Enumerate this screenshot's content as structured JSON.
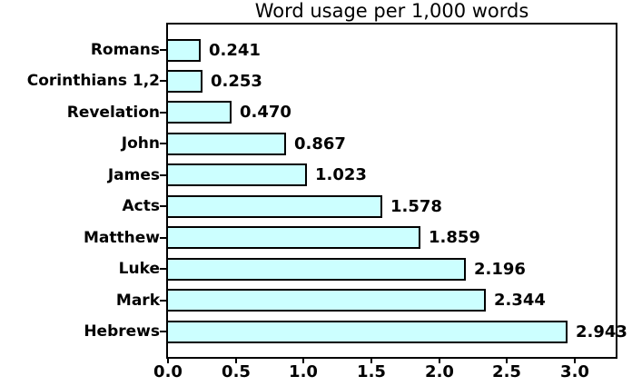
{
  "title": "Word usage per 1,000 words",
  "chart_data": {
    "type": "bar",
    "orientation": "horizontal",
    "title": "Word usage per 1,000 words",
    "xlabel": "",
    "ylabel": "",
    "categories": [
      "Romans",
      "Corinthians 1,2",
      "Revelation",
      "John",
      "James",
      "Acts",
      "Matthew",
      "Luke",
      "Mark",
      "Hebrews"
    ],
    "values": [
      0.241,
      0.253,
      0.47,
      0.867,
      1.023,
      1.578,
      1.859,
      2.196,
      2.344,
      2.943
    ],
    "value_labels": [
      "0.241",
      "0.253",
      "0.470",
      "0.867",
      "1.023",
      "1.578",
      "1.859",
      "2.196",
      "2.344",
      "2.943"
    ],
    "x_ticks": [
      "0.0",
      "0.5",
      "1.0",
      "1.5",
      "2.0",
      "2.5",
      "3.0"
    ],
    "x_tick_values": [
      0.0,
      0.5,
      1.0,
      1.5,
      2.0,
      2.5,
      3.0
    ],
    "xlim": [
      0,
      3.3
    ],
    "grid": false,
    "legend": "none",
    "bar_color": "#CCFFFF",
    "bar_border_color": "#000000",
    "text_color": "#000000",
    "background_color": "#FFFFFF"
  }
}
